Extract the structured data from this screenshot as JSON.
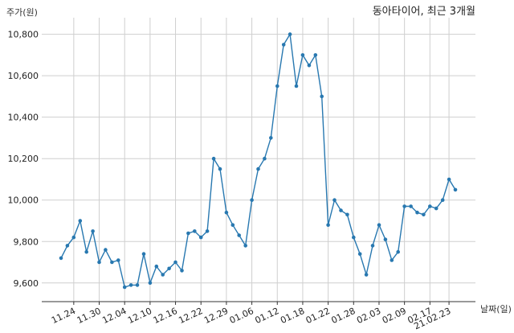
{
  "chart_data": {
    "type": "line",
    "title": "동아타이어, 최근 3개월",
    "ylabel": "주가(원)",
    "xlabel": "날짜(일)",
    "ylim": [
      9510,
      10880
    ],
    "yticks": [
      9600,
      9800,
      10000,
      10200,
      10400,
      10600,
      10800
    ],
    "ytick_labels": [
      "9,600",
      "9,800",
      "10,000",
      "10,200",
      "10,400",
      "10,600",
      "10,800"
    ],
    "x_tick_labels": [
      "11.24",
      "11.30",
      "12.04",
      "12.10",
      "12.16",
      "12.22",
      "12.29",
      "01.06",
      "01.12",
      "01.18",
      "01.22",
      "01.28",
      "02.03",
      "02.09",
      "02.17",
      "21.02.23"
    ],
    "x_tick_index": [
      2,
      6,
      10,
      14,
      18,
      22,
      26,
      30,
      34,
      38,
      42,
      46,
      50,
      54,
      58,
      61
    ],
    "grid": true,
    "line_color": "#2878b0",
    "values": [
      9720,
      9780,
      9820,
      9900,
      9750,
      9850,
      9700,
      9760,
      9700,
      9710,
      9580,
      9590,
      9590,
      9740,
      9600,
      9680,
      9640,
      9670,
      9700,
      9660,
      9840,
      9850,
      9820,
      9850,
      10200,
      10150,
      9940,
      9880,
      9830,
      9780,
      10000,
      10150,
      10200,
      10300,
      10550,
      10750,
      10800,
      10550,
      10700,
      10650,
      10700,
      10500,
      9880,
      10000,
      9950,
      9930,
      9820,
      9740,
      9640,
      9780,
      9880,
      9810,
      9710,
      9750,
      9970,
      9970,
      9940,
      9930,
      9970,
      9960,
      10000,
      10100,
      10050
    ]
  }
}
